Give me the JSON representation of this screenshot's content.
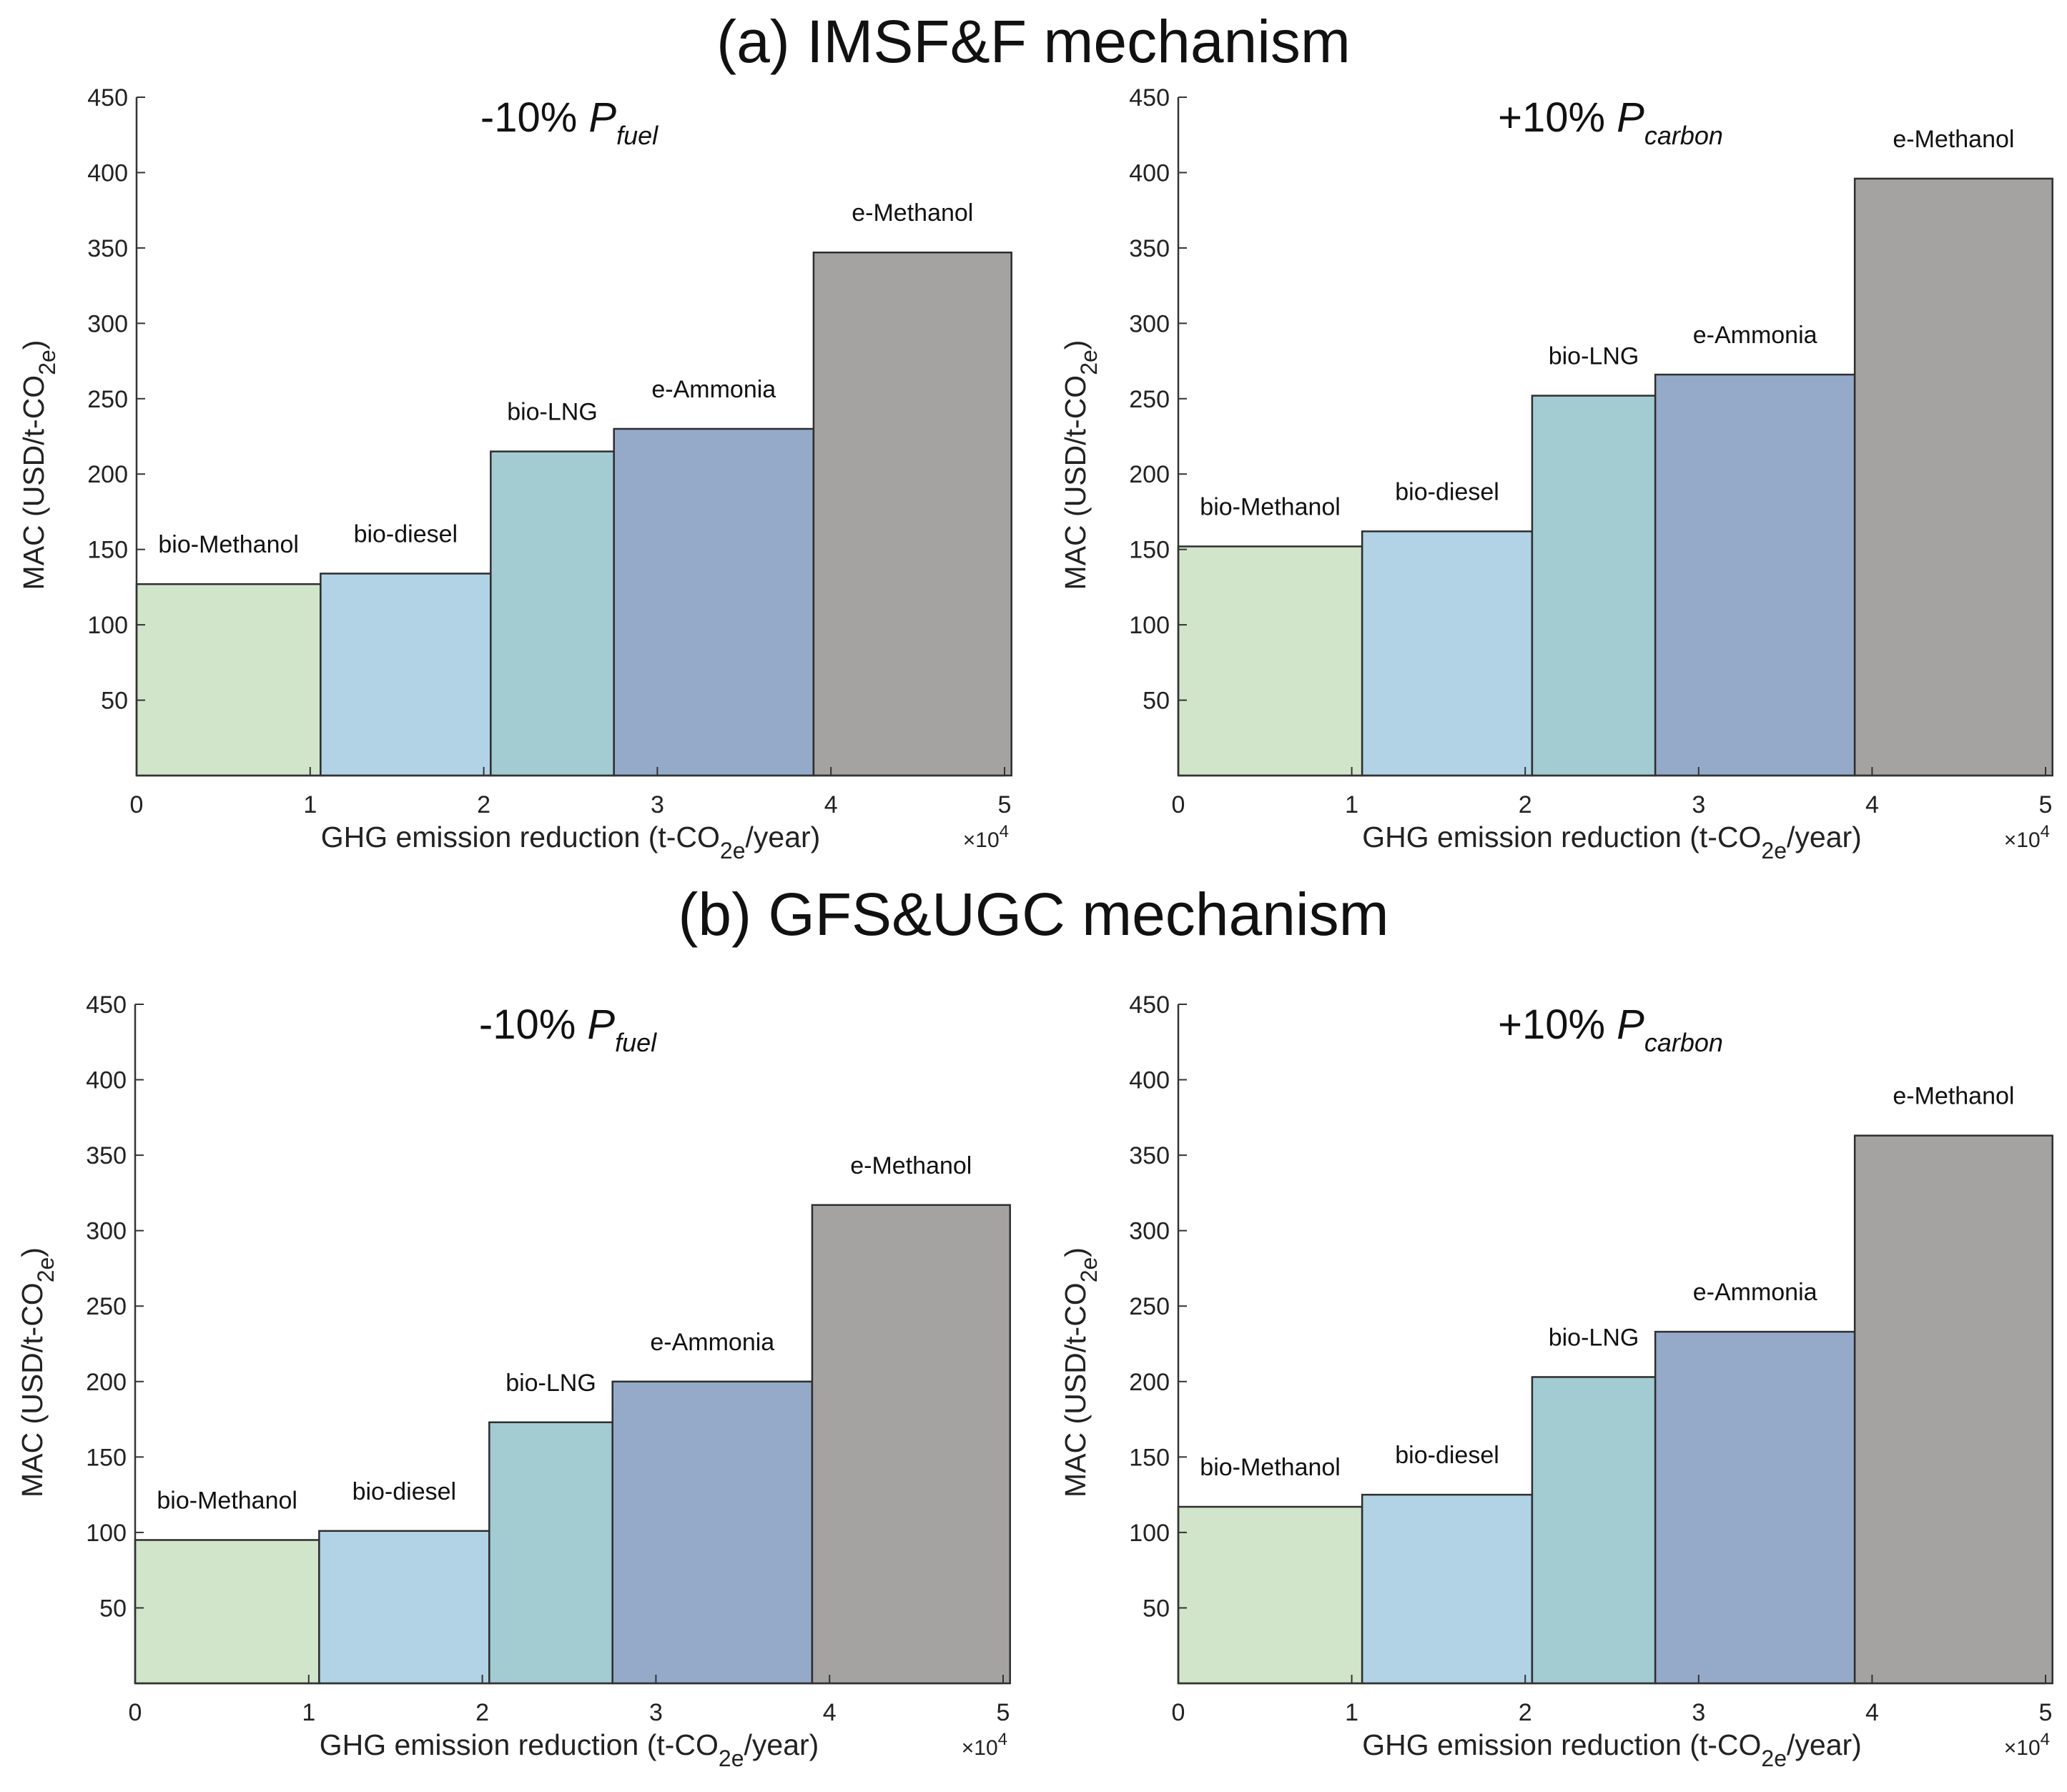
{
  "sections": [
    {
      "title": "(a) IMSF&F mechanism"
    },
    {
      "title": "(b) GFS&UGC mechanism"
    }
  ],
  "colors": {
    "bio-Methanol": "#d1e5cb",
    "bio-diesel": "#b1d3e5",
    "bio-LNG": "#a3cbd2",
    "e-Ammonia": "#94aac8",
    "e-Methanol": "#a5a3a1",
    "edge": "#2e2e2e",
    "axis": "#333333"
  },
  "chart_data": [
    {
      "type": "bar",
      "panel": "(a) left",
      "title": "-10% ",
      "title_symbol": "P",
      "title_subscript": "fuel",
      "xlabel": "GHG emission reduction (t-CO",
      "xlabel_sub": "2e",
      "xlabel_end": "/year)",
      "ylabel": "MAC (USD/t-CO",
      "ylabel_sub": "2e",
      "ylabel_end": ")",
      "x_multiplier": "×10",
      "x_multiplier_exp": "4",
      "xlim": [
        0,
        50000
      ],
      "ylim": [
        0,
        450
      ],
      "xticks": [
        0,
        1,
        2,
        3,
        4,
        5
      ],
      "yticks": [
        50,
        100,
        150,
        200,
        250,
        300,
        350,
        400,
        450
      ],
      "bars": [
        {
          "label": "bio-Methanol",
          "x_start": 0,
          "x_end": 10600,
          "value": 127
        },
        {
          "label": "bio-diesel",
          "x_start": 10600,
          "x_end": 20400,
          "value": 134
        },
        {
          "label": "bio-LNG",
          "x_start": 20400,
          "x_end": 27500,
          "value": 215
        },
        {
          "label": "e-Ammonia",
          "x_start": 27500,
          "x_end": 39000,
          "value": 230
        },
        {
          "label": "e-Methanol",
          "x_start": 39000,
          "x_end": 50400,
          "value": 347
        }
      ]
    },
    {
      "type": "bar",
      "panel": "(a) right",
      "title": "+10% ",
      "title_symbol": "P",
      "title_subscript": "carbon",
      "xlabel": "GHG emission reduction (t-CO",
      "xlabel_sub": "2e",
      "xlabel_end": "/year)",
      "ylabel": "MAC (USD/t-CO",
      "ylabel_sub": "2e",
      "ylabel_end": ")",
      "x_multiplier": "×10",
      "x_multiplier_exp": "4",
      "xlim": [
        0,
        50000
      ],
      "ylim": [
        0,
        450
      ],
      "xticks": [
        0,
        1,
        2,
        3,
        4,
        5
      ],
      "yticks": [
        50,
        100,
        150,
        200,
        250,
        300,
        350,
        400,
        450
      ],
      "bars": [
        {
          "label": "bio-Methanol",
          "x_start": 0,
          "x_end": 10600,
          "value": 152
        },
        {
          "label": "bio-diesel",
          "x_start": 10600,
          "x_end": 20400,
          "value": 162
        },
        {
          "label": "bio-LNG",
          "x_start": 20400,
          "x_end": 27500,
          "value": 252
        },
        {
          "label": "e-Ammonia",
          "x_start": 27500,
          "x_end": 39000,
          "value": 266
        },
        {
          "label": "e-Methanol",
          "x_start": 39000,
          "x_end": 50400,
          "value": 396
        }
      ]
    },
    {
      "type": "bar",
      "panel": "(b) left",
      "title": "-10% ",
      "title_symbol": "P",
      "title_subscript": "fuel",
      "xlabel": "GHG emission reduction (t-CO",
      "xlabel_sub": "2e",
      "xlabel_end": "/year)",
      "ylabel": "MAC (USD/t-CO",
      "ylabel_sub": "2e",
      "ylabel_end": ")",
      "x_multiplier": "×10",
      "x_multiplier_exp": "4",
      "xlim": [
        0,
        50000
      ],
      "ylim": [
        0,
        450
      ],
      "xticks": [
        0,
        1,
        2,
        3,
        4,
        5
      ],
      "yticks": [
        50,
        100,
        150,
        200,
        250,
        300,
        350,
        400,
        450
      ],
      "bars": [
        {
          "label": "bio-Methanol",
          "x_start": 0,
          "x_end": 10600,
          "value": 95
        },
        {
          "label": "bio-diesel",
          "x_start": 10600,
          "x_end": 20400,
          "value": 101
        },
        {
          "label": "bio-LNG",
          "x_start": 20400,
          "x_end": 27500,
          "value": 173
        },
        {
          "label": "e-Ammonia",
          "x_start": 27500,
          "x_end": 39000,
          "value": 200
        },
        {
          "label": "e-Methanol",
          "x_start": 39000,
          "x_end": 50400,
          "value": 317
        }
      ]
    },
    {
      "type": "bar",
      "panel": "(b) right",
      "title": "+10% ",
      "title_symbol": "P",
      "title_subscript": "carbon",
      "xlabel": "GHG emission reduction (t-CO",
      "xlabel_sub": "2e",
      "xlabel_end": "/year)",
      "ylabel": "MAC (USD/t-CO",
      "ylabel_sub": "2e",
      "ylabel_end": ")",
      "x_multiplier": "×10",
      "x_multiplier_exp": "4",
      "xlim": [
        0,
        50000
      ],
      "ylim": [
        0,
        450
      ],
      "xticks": [
        0,
        1,
        2,
        3,
        4,
        5
      ],
      "yticks": [
        50,
        100,
        150,
        200,
        250,
        300,
        350,
        400,
        450
      ],
      "bars": [
        {
          "label": "bio-Methanol",
          "x_start": 0,
          "x_end": 10600,
          "value": 117
        },
        {
          "label": "bio-diesel",
          "x_start": 10600,
          "x_end": 20400,
          "value": 125
        },
        {
          "label": "bio-LNG",
          "x_start": 20400,
          "x_end": 27500,
          "value": 203
        },
        {
          "label": "e-Ammonia",
          "x_start": 27500,
          "x_end": 39000,
          "value": 233
        },
        {
          "label": "e-Methanol",
          "x_start": 39000,
          "x_end": 50400,
          "value": 363
        }
      ]
    }
  ]
}
